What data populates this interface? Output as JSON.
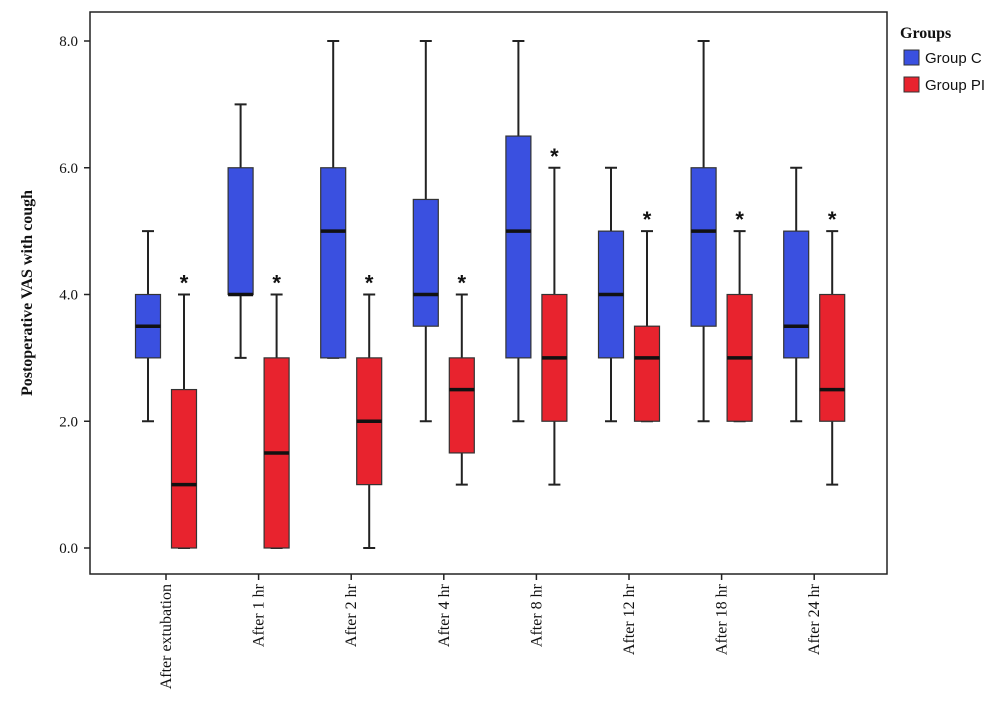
{
  "chart_data": {
    "type": "boxplot",
    "ylabel": "Postoperative VAS with cough",
    "xlabel": "",
    "ylim": [
      -0.4,
      8.4
    ],
    "yticks": [
      "0.0",
      "2.0",
      "4.0",
      "6.0",
      "8.0"
    ],
    "grid": false,
    "legend": {
      "title": "Groups",
      "position": "top-right"
    },
    "categories": [
      "After extubation",
      "After 1 hr",
      "After 2 hr",
      "After 4 hr",
      "After 8 hr",
      "After 12 hr",
      "After 18 hr",
      "After 24 hr"
    ],
    "series": [
      {
        "name": "Group C",
        "color": "#3a50e0",
        "boxes": [
          {
            "min": 2,
            "q1": 3,
            "median": 3.5,
            "q3": 4,
            "max": 5
          },
          {
            "min": 3,
            "q1": 4,
            "median": 4,
            "q3": 6,
            "max": 7
          },
          {
            "min": 3,
            "q1": 3,
            "median": 5,
            "q3": 6,
            "max": 8
          },
          {
            "min": 2,
            "q1": 3.5,
            "median": 4,
            "q3": 5.5,
            "max": 8
          },
          {
            "min": 2,
            "q1": 3,
            "median": 5,
            "q3": 6.5,
            "max": 8
          },
          {
            "min": 2,
            "q1": 3,
            "median": 4,
            "q3": 5,
            "max": 6
          },
          {
            "min": 2,
            "q1": 3.5,
            "median": 5,
            "q3": 6,
            "max": 8
          },
          {
            "min": 2,
            "q1": 3,
            "median": 3.5,
            "q3": 5,
            "max": 6
          }
        ]
      },
      {
        "name": "Group PI",
        "color": "#e8232e",
        "boxes": [
          {
            "min": 0,
            "q1": 0,
            "median": 1,
            "q3": 2.5,
            "max": 4,
            "marker": "*"
          },
          {
            "min": 0,
            "q1": 0,
            "median": 1.5,
            "q3": 3,
            "max": 4,
            "marker": "*"
          },
          {
            "min": 0,
            "q1": 1,
            "median": 2,
            "q3": 3,
            "max": 4,
            "marker": "*"
          },
          {
            "min": 1,
            "q1": 1.5,
            "median": 2.5,
            "q3": 3,
            "max": 4,
            "marker": "*"
          },
          {
            "min": 1,
            "q1": 2,
            "median": 3,
            "q3": 4,
            "max": 6,
            "marker": "*"
          },
          {
            "min": 2,
            "q1": 2,
            "median": 3,
            "q3": 3.5,
            "max": 5,
            "marker": "*"
          },
          {
            "min": 2,
            "q1": 2,
            "median": 3,
            "q3": 4,
            "max": 5,
            "marker": "*"
          },
          {
            "min": 1,
            "q1": 2,
            "median": 2.5,
            "q3": 4,
            "max": 5,
            "marker": "*"
          }
        ]
      }
    ]
  }
}
